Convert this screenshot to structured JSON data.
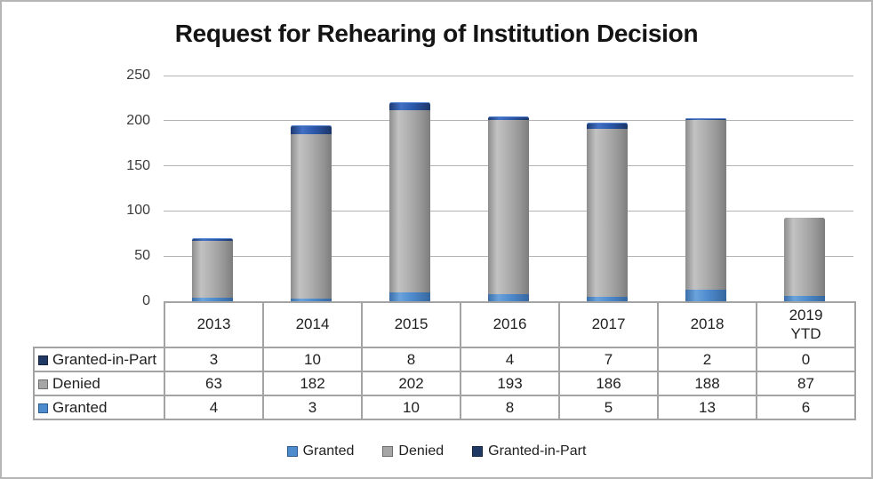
{
  "window": {
    "background": "#ffffff",
    "frame_border_color": "#b5b5b5"
  },
  "chart_data": {
    "type": "bar",
    "stacked": true,
    "title": "Request for Rehearing of Institution Decision",
    "categories": [
      "2013",
      "2014",
      "2015",
      "2016",
      "2017",
      "2018",
      "2019 YTD"
    ],
    "series": [
      {
        "name": "Granted",
        "key": "granted",
        "color": "#4e8bcd",
        "border_color": "#2c5e92",
        "values": [
          4,
          3,
          10,
          8,
          5,
          13,
          6
        ]
      },
      {
        "name": "Denied",
        "key": "denied",
        "color": "#a6a6a6",
        "border_color": "#6e6e6e",
        "values": [
          63,
          182,
          202,
          193,
          186,
          188,
          87
        ]
      },
      {
        "name": "Granted-in-Part",
        "key": "gip",
        "color": "#1f3864",
        "border_color": "#16233c",
        "values": [
          3,
          10,
          8,
          4,
          7,
          2,
          0
        ]
      }
    ],
    "stack_order_bottom_to_top": [
      "Granted",
      "Denied",
      "Granted-in-Part"
    ],
    "xlabel": "",
    "ylabel": "",
    "ylim": [
      0,
      250
    ],
    "yticks": [
      0,
      50,
      100,
      150,
      200,
      250
    ],
    "grid": true,
    "gridline_color": "#b3b3b3",
    "legend_position": "bottom"
  },
  "table": {
    "col_headers": [
      "2013",
      "2014",
      "2015",
      "2016",
      "2017",
      "2018",
      "2019\nYTD"
    ],
    "rows": [
      {
        "label": "Granted-in-Part",
        "key": "gip",
        "values": [
          "3",
          "10",
          "8",
          "4",
          "7",
          "2",
          "0"
        ]
      },
      {
        "label": "Denied",
        "key": "denied",
        "values": [
          "63",
          "182",
          "202",
          "193",
          "186",
          "188",
          "87"
        ]
      },
      {
        "label": "Granted",
        "key": "granted",
        "values": [
          "4",
          "3",
          "10",
          "8",
          "5",
          "13",
          "6"
        ]
      }
    ]
  },
  "legend": {
    "items": [
      {
        "label": "Granted",
        "key": "granted"
      },
      {
        "label": "Denied",
        "key": "denied"
      },
      {
        "label": "Granted-in-Part",
        "key": "gip"
      }
    ]
  }
}
